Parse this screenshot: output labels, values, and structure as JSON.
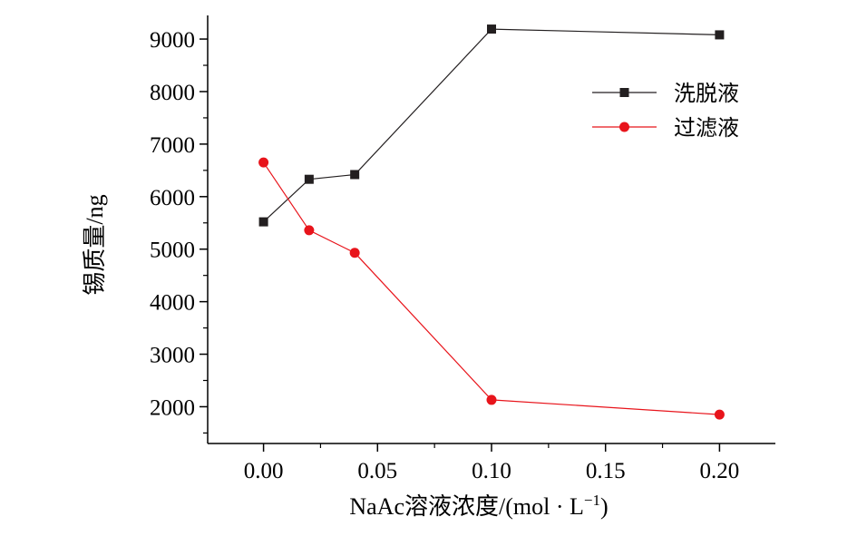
{
  "chart_data": {
    "type": "line",
    "title": "",
    "xlabel": "NaAc溶液浓度/(mol · L",
    "xlabel_sup": "−1",
    "xlabel_close": ")",
    "ylabel": "锡质量/ng",
    "xlim": [
      -0.0245,
      0.2245
    ],
    "ylim": [
      1300,
      9450
    ],
    "x_ticks": [
      0.0,
      0.05,
      0.1,
      0.15,
      0.2
    ],
    "x_tick_labels": [
      "0.00",
      "0.05",
      "0.10",
      "0.15",
      "0.20"
    ],
    "y_ticks": [
      2000,
      3000,
      4000,
      5000,
      6000,
      7000,
      8000,
      9000
    ],
    "y_tick_labels": [
      "2000",
      "3000",
      "4000",
      "5000",
      "6000",
      "7000",
      "8000",
      "9000"
    ],
    "grid": false,
    "legend_position": "top-right",
    "series": [
      {
        "name": "洗脱液",
        "color": "#231f20",
        "marker": "square",
        "x": [
          0.0,
          0.02,
          0.04,
          0.1,
          0.2
        ],
        "y": [
          5520,
          6330,
          6420,
          9190,
          9080
        ]
      },
      {
        "name": "过滤液",
        "color": "#e8141b",
        "marker": "circle",
        "x": [
          0.0,
          0.02,
          0.04,
          0.1,
          0.2
        ],
        "y": [
          6650,
          5360,
          4930,
          2130,
          1850
        ]
      }
    ]
  }
}
